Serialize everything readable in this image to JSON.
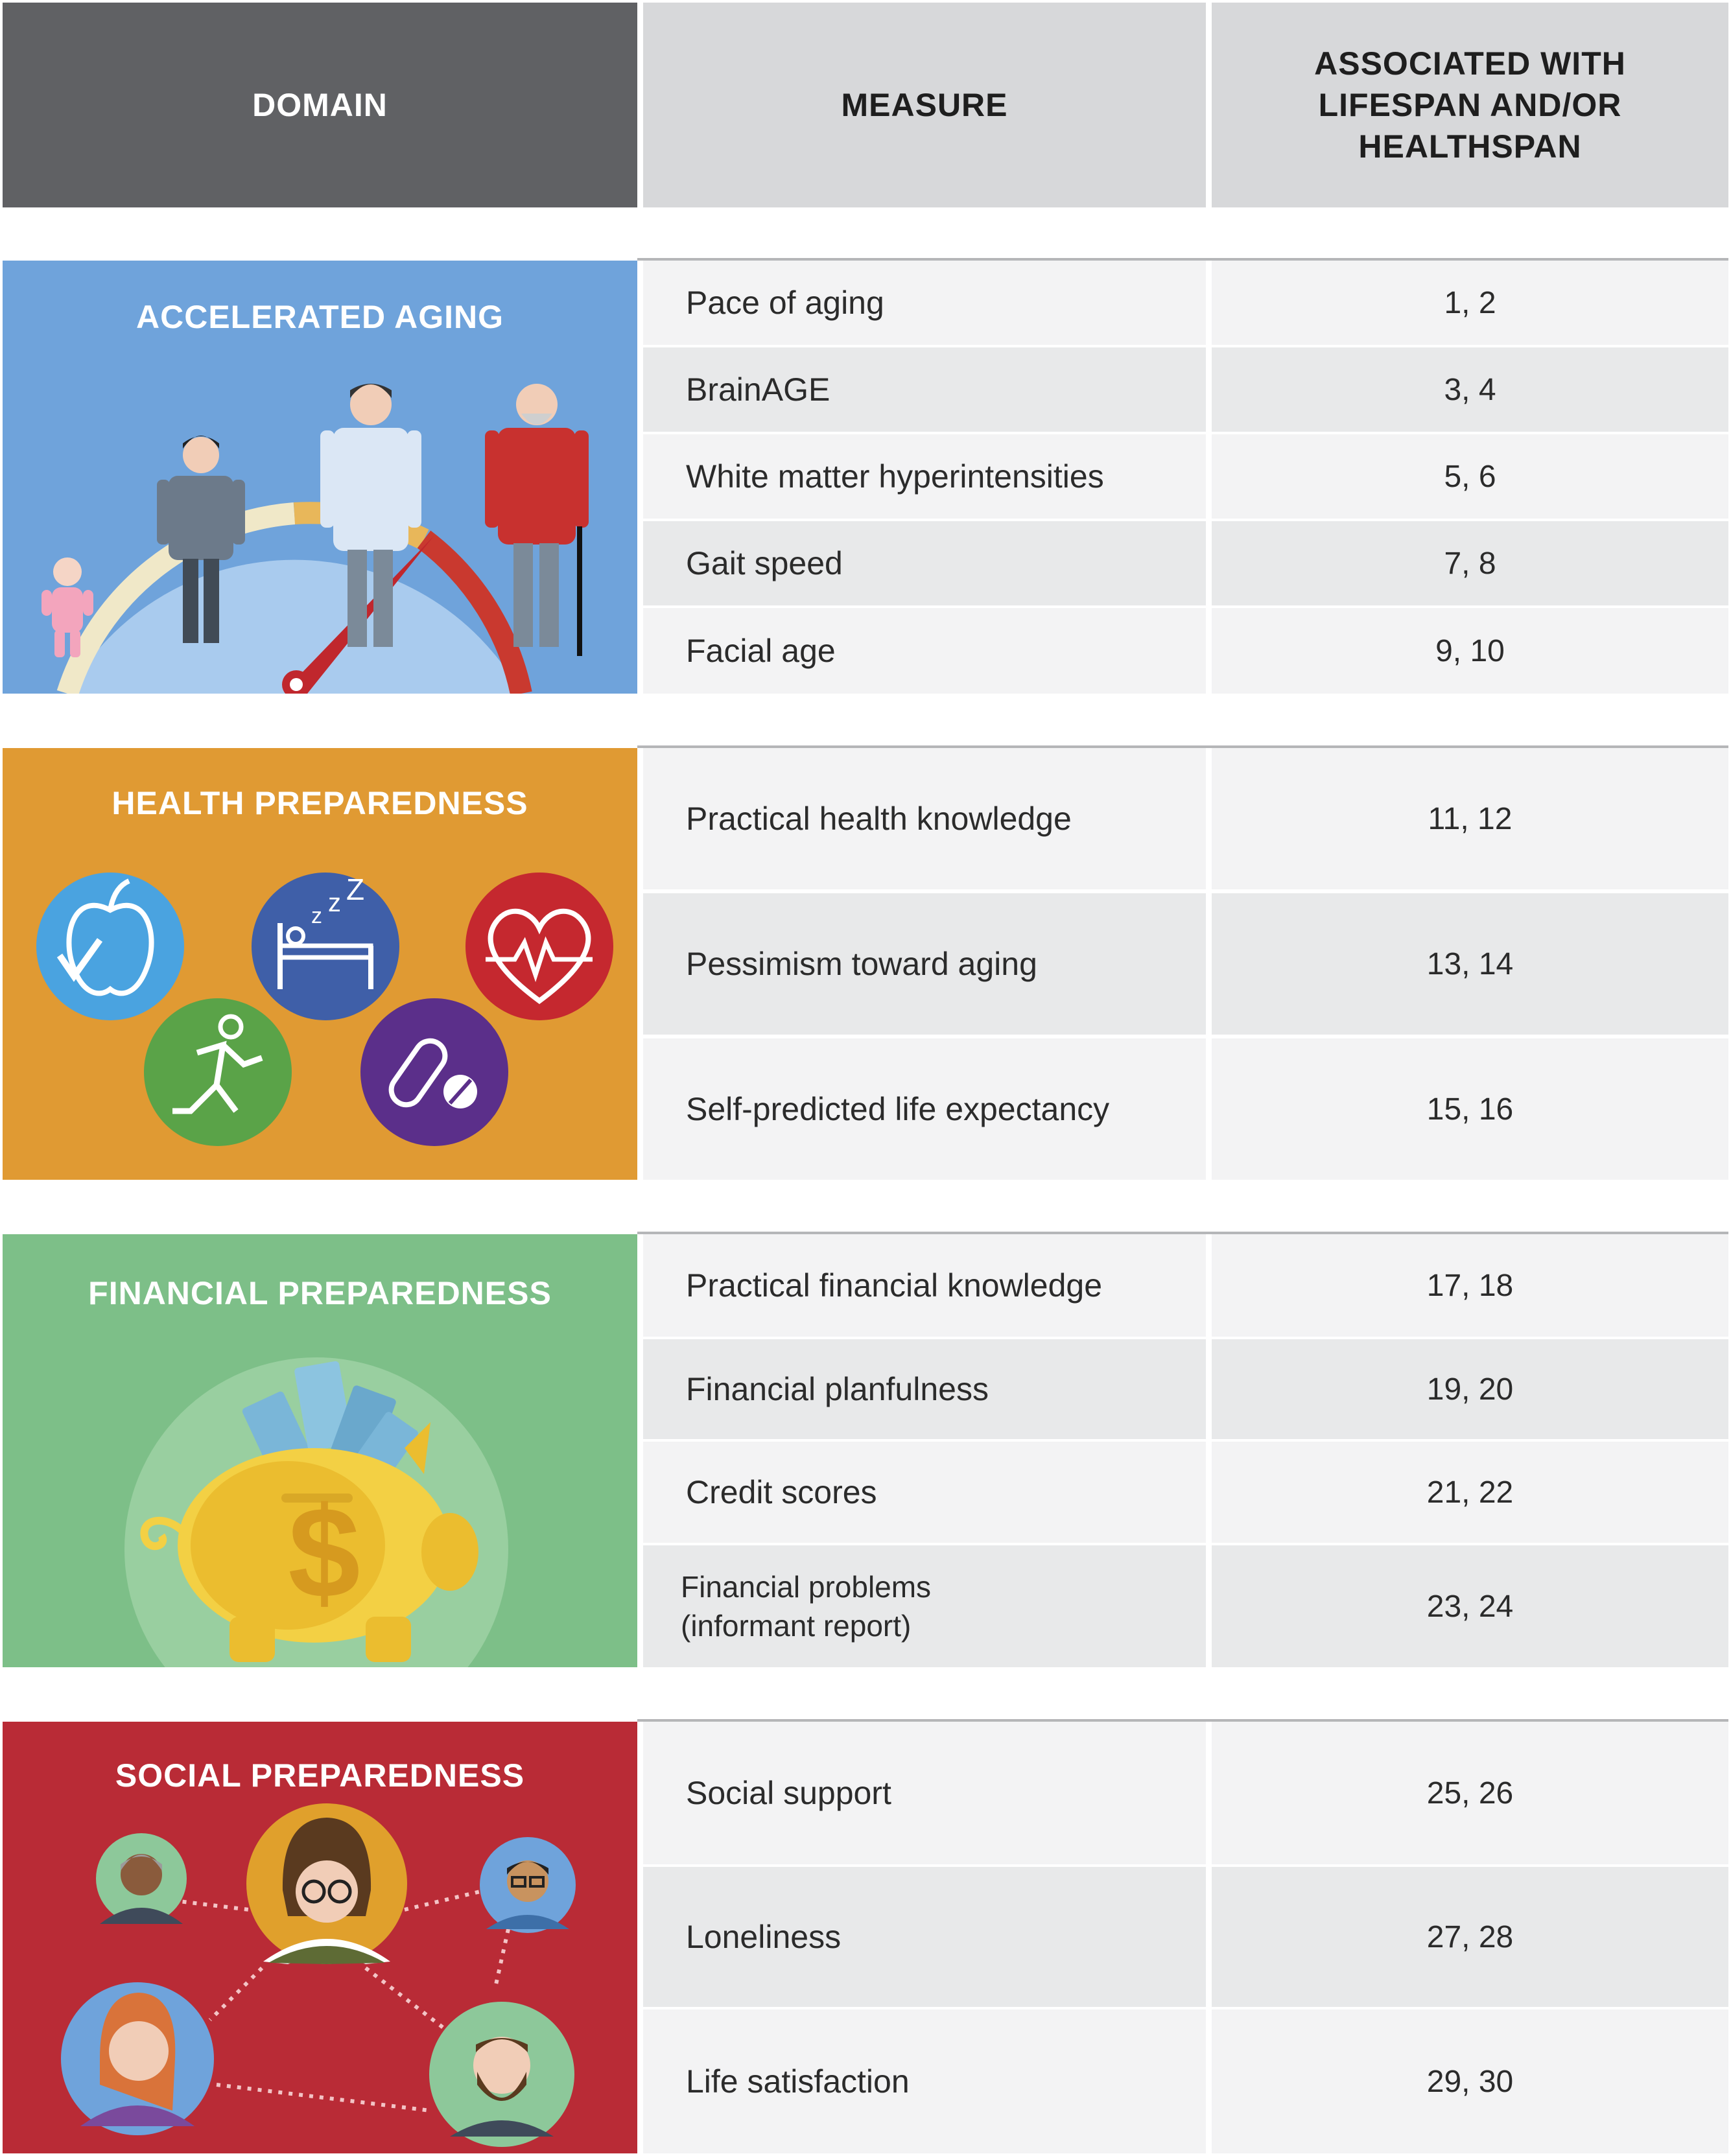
{
  "header": {
    "domain": "DOMAIN",
    "measure": "MEASURE",
    "associated_lines": [
      "ASSOCIATED WITH",
      "LIFESPAN AND/OR",
      "HEALTHSPAN"
    ]
  },
  "sections": [
    {
      "title": "ACCELERATED AGING",
      "color": "#6fa3db",
      "rows": [
        {
          "measure": "Pace of aging",
          "refs": "1, 2"
        },
        {
          "measure": "BrainAGE",
          "refs": "3, 4"
        },
        {
          "measure": "White matter hyperintensities",
          "refs": "5, 6"
        },
        {
          "measure": "Gait speed",
          "refs": "7, 8"
        },
        {
          "measure": "Facial age",
          "refs": "9, 10"
        }
      ]
    },
    {
      "title": "HEALTH PREPAREDNESS",
      "color": "#e09a33",
      "rows": [
        {
          "measure": "Practical health knowledge",
          "refs": "11, 12"
        },
        {
          "measure": "Pessimism toward aging",
          "refs": "13, 14"
        },
        {
          "measure": "Self-predicted life expectancy",
          "refs": "15, 16"
        }
      ]
    },
    {
      "title": "FINANCIAL PREPAREDNESS",
      "color": "#7dbf88",
      "rows": [
        {
          "measure": "Practical financial knowledge",
          "refs": "17, 18"
        },
        {
          "measure": "Financial planfulness",
          "refs": "19, 20"
        },
        {
          "measure": "Credit scores",
          "refs": "21, 22"
        },
        {
          "measure_lines": [
            "Financial problems",
            "(informant report)"
          ],
          "refs": "23, 24"
        }
      ]
    },
    {
      "title": "SOCIAL PREPAREDNESS",
      "color": "#b92b36",
      "rows": [
        {
          "measure": "Social support",
          "refs": "25, 26"
        },
        {
          "measure": "Loneliness",
          "refs": "27, 28"
        },
        {
          "measure": "Life satisfaction",
          "refs": "29, 30"
        }
      ]
    }
  ],
  "icons": {
    "accelerated": [
      "baby-icon",
      "child-icon",
      "adult-icon",
      "elder-icon",
      "speedometer-icon"
    ],
    "health": [
      "apple-icon",
      "sleep-bed-icon",
      "heart-rate-icon",
      "running-person-icon",
      "pills-icon"
    ],
    "financial": [
      "piggy-bank-icon",
      "dollar-sign-icon",
      "money-bills-icon"
    ],
    "social": [
      "person-avatar-icon"
    ]
  }
}
